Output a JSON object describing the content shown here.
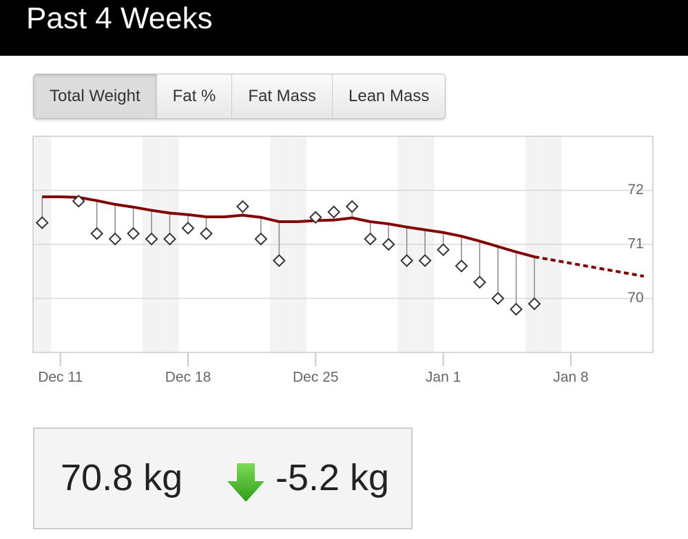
{
  "header": {
    "title": "Past 4 Weeks"
  },
  "tabs": [
    {
      "label": "Total Weight",
      "selected": true
    },
    {
      "label": "Fat %",
      "selected": false
    },
    {
      "label": "Fat Mass",
      "selected": false
    },
    {
      "label": "Lean Mass",
      "selected": false
    }
  ],
  "chart_data": {
    "type": "line",
    "categories": [
      null,
      "Dec 11",
      null,
      null,
      null,
      null,
      null,
      null,
      "Dec 18",
      null,
      null,
      null,
      null,
      null,
      null,
      "Dec 25",
      null,
      null,
      null,
      null,
      null,
      null,
      "Jan 1",
      null,
      null,
      null,
      null,
      null,
      null,
      "Jan 8",
      null,
      null,
      null,
      null
    ],
    "series": [
      {
        "color": "#333333",
        "marker": "diamond",
        "stems": true,
        "values": [
          71.4,
          null,
          71.8,
          71.2,
          71.1,
          71.2,
          71.1,
          71.1,
          71.3,
          71.2,
          null,
          71.7,
          71.1,
          70.7,
          null,
          71.5,
          71.6,
          71.7,
          71.1,
          71.0,
          70.7,
          70.7,
          70.9,
          70.6,
          70.3,
          70.0,
          69.8,
          69.9,
          null,
          null,
          null,
          null,
          null,
          null
        ]
      },
      {
        "color": "#800000",
        "values": [
          71.88,
          71.88,
          71.87,
          71.81,
          71.74,
          71.69,
          71.63,
          71.58,
          71.55,
          71.51,
          71.51,
          71.54,
          71.5,
          71.42,
          71.42,
          71.44,
          71.45,
          71.49,
          71.42,
          71.38,
          71.32,
          71.27,
          71.22,
          71.15,
          71.06,
          70.96,
          70.86,
          70.77,
          null,
          null,
          null,
          null,
          null,
          null
        ]
      },
      {
        "color": "#800000",
        "dashed": true,
        "values": [
          null,
          null,
          null,
          null,
          null,
          null,
          null,
          null,
          null,
          null,
          null,
          null,
          null,
          null,
          null,
          null,
          null,
          null,
          null,
          null,
          null,
          null,
          null,
          null,
          null,
          null,
          null,
          70.77,
          70.71,
          70.65,
          70.59,
          70.53,
          70.47,
          70.41
        ]
      }
    ],
    "ylim": [
      69,
      73
    ],
    "yticks": [
      70,
      71,
      72
    ],
    "grid": true
  },
  "summary": {
    "current": "70.8 kg",
    "change": "-5.2 kg"
  }
}
